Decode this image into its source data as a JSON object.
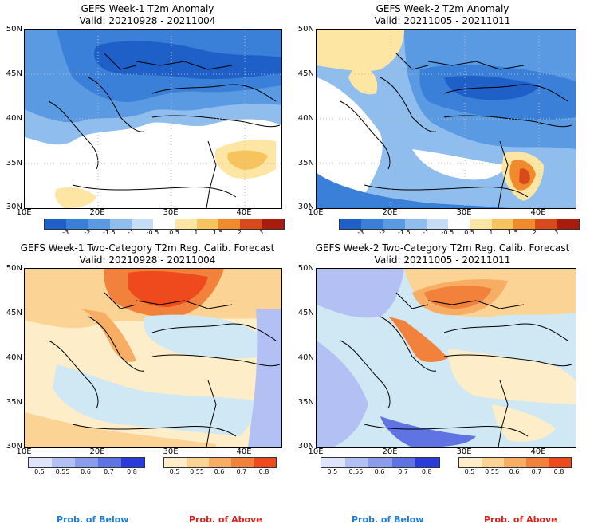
{
  "panels": [
    {
      "title": "GEFS Week-1 T2m Anomaly",
      "valid": "Valid: 20210928 - 20211004",
      "kind": "anomaly"
    },
    {
      "title": "GEFS Week-2 T2m Anomaly",
      "valid": "Valid: 20211005 - 20211011",
      "kind": "anomaly"
    },
    {
      "title": "GEFS Week-1 Two-Category T2m Reg. Calib. Forecast",
      "valid": "Valid: 20210928 - 20211004",
      "kind": "prob"
    },
    {
      "title": "GEFS Week-2 Two-Category T2m Reg. Calib. Forecast",
      "valid": "Valid: 20211005 - 20211011",
      "kind": "prob"
    }
  ],
  "lat_labels": [
    "50N",
    "45N",
    "40N",
    "35N",
    "30N"
  ],
  "lon_labels": [
    "10E",
    "20E",
    "30E",
    "40E"
  ],
  "anomaly_colorbar": {
    "ticks": [
      "-3",
      "-2",
      "-1.5",
      "-1",
      "-0.5",
      "0.5",
      "1",
      "1.5",
      "2",
      "3"
    ],
    "colors": [
      "#1f5fc8",
      "#3a7fd8",
      "#5a9ae3",
      "#8fbdee",
      "#c4dcf5",
      "#ffffff",
      "#fde6a3",
      "#f7c35c",
      "#f08a2a",
      "#d84a1c",
      "#a81c10"
    ]
  },
  "prob_below": {
    "ticks": [
      "0.5",
      "0.55",
      "0.6",
      "0.7",
      "0.8"
    ],
    "colors": [
      "#dde4fb",
      "#b3c0f3",
      "#8b9cec",
      "#5f73e2",
      "#2a3bdb"
    ],
    "label": "Prob. of Below",
    "label_color": "#1e7be0"
  },
  "prob_above": {
    "ticks": [
      "0.5",
      "0.55",
      "0.6",
      "0.7",
      "0.8"
    ],
    "colors": [
      "#fdedc8",
      "#fbd394",
      "#f7ad63",
      "#f2813c",
      "#ee4a1d"
    ],
    "label": "Prob. of Above",
    "label_color": "#e0201e"
  }
}
